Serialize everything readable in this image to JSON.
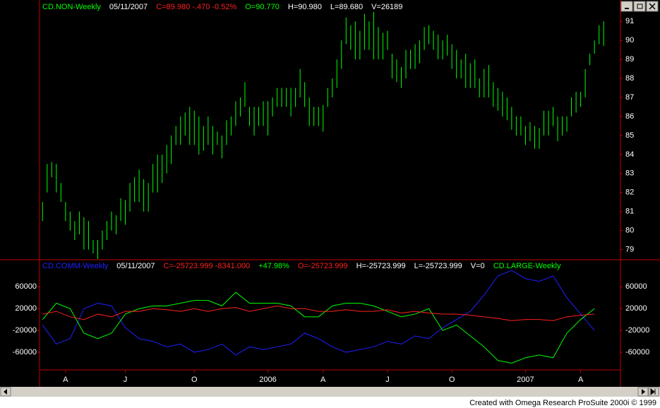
{
  "chart_data": [
    {
      "type": "ohlc",
      "header": [
        {
          "text": "CD.NON-Weekly",
          "color": "#00ff00"
        },
        {
          "text": "05/11/2007",
          "color": "#ffffff"
        },
        {
          "text": "C=89.980  -.470  -0.52%",
          "color": "#ff2020"
        },
        {
          "text": "O=90.770",
          "color": "#00ff00"
        },
        {
          "text": "H=90.980",
          "color": "#ffffff"
        },
        {
          "text": "L=89.680",
          "color": "#ffffff"
        },
        {
          "text": "V=26189",
          "color": "#ffffff"
        }
      ],
      "color": "#00ff00",
      "xlim": [
        -0.5,
        125.5
      ],
      "ylim": [
        78.5,
        92.05
      ],
      "yticks": [
        79,
        80,
        81,
        82,
        83,
        84,
        85,
        86,
        87,
        88,
        89,
        90,
        91
      ],
      "high": [
        81.5,
        83.5,
        83.6,
        83.5,
        82.5,
        81.5,
        81,
        80.5,
        81,
        80.7,
        80.5,
        79.5,
        79.5,
        80,
        80.5,
        81,
        80.8,
        81.7,
        81.6,
        82.5,
        82.8,
        83.2,
        82.7,
        82.5,
        83.5,
        84,
        84,
        84.5,
        85,
        85.5,
        86,
        86.2,
        86.5,
        86.3,
        86,
        85.5,
        86,
        85.5,
        85.2,
        85,
        85.8,
        86,
        86.8,
        87,
        87.8,
        86.5,
        86.5,
        86.5,
        86.8,
        86.8,
        87,
        87.5,
        87.5,
        87.5,
        87.5,
        87.5,
        88.5,
        87.8,
        87,
        86.5,
        86.5,
        86.6,
        87.5,
        88,
        89,
        90,
        91.2,
        90.8,
        91,
        90.5,
        91.4,
        91,
        91.5,
        90.7,
        90.4,
        90.5,
        89.3,
        89,
        88.6,
        89.5,
        89.5,
        89.8,
        90,
        90.7,
        90.8,
        90.5,
        90.3,
        90,
        90.3,
        89.8,
        89.5,
        89,
        89.3,
        88.8,
        89,
        88,
        88.5,
        88.7,
        87.8,
        87.5,
        87.3,
        87,
        86.5,
        86,
        86,
        85.5,
        85.7,
        85.5,
        85.4,
        86.3,
        86.3,
        86.5,
        86,
        86,
        86,
        87,
        87.3,
        87.3,
        88.5,
        89.3,
        90,
        90.8,
        91
      ],
      "low": [
        80.5,
        82,
        82.8,
        82,
        81.5,
        80.5,
        80,
        79.5,
        79.8,
        79,
        79,
        78.8,
        78.5,
        79,
        79.5,
        80,
        79.8,
        80.5,
        80.3,
        81,
        81.5,
        81.5,
        81,
        81,
        82,
        82,
        82.5,
        83,
        83.5,
        84.5,
        84.5,
        85,
        84.5,
        84.5,
        84,
        84.2,
        84.5,
        84,
        84.5,
        83.8,
        84.5,
        85,
        85.5,
        86,
        86.5,
        85.5,
        85,
        85.5,
        85.5,
        85,
        86,
        86.5,
        86.5,
        86.5,
        86,
        86.5,
        87,
        86.5,
        85.5,
        85.5,
        85.5,
        85.2,
        86.5,
        87,
        87.5,
        88.5,
        89.8,
        89.5,
        89,
        89,
        89.5,
        89.5,
        89,
        89,
        89,
        89.5,
        88,
        87.8,
        87.5,
        88,
        88.5,
        88.5,
        88.8,
        89.5,
        89.8,
        89.5,
        89,
        89,
        89.2,
        88.5,
        88,
        88,
        87.5,
        87.5,
        87.5,
        87,
        87,
        87,
        86.5,
        86.3,
        86,
        85.8,
        85.3,
        85,
        85,
        84.5,
        84.7,
        84.3,
        84.3,
        85,
        85,
        85.5,
        84.7,
        85,
        85.2,
        86,
        86.2,
        86.5,
        87,
        88.7,
        89.3,
        89.8,
        89.7
      ]
    },
    {
      "type": "line",
      "header": [
        {
          "text": "CD.COMM-Weekly",
          "color": "#2020ff"
        },
        {
          "text": "05/11/2007",
          "color": "#ffffff"
        },
        {
          "text": "C=-25723.999  -8341.000",
          "color": "#ff2020"
        },
        {
          "text": "+47.98%",
          "color": "#00ff00"
        },
        {
          "text": "O=-25723.999",
          "color": "#ff2020"
        },
        {
          "text": "H=-25723.999",
          "color": "#ffffff"
        },
        {
          "text": "L=-25723.999",
          "color": "#ffffff"
        },
        {
          "text": "V=0",
          "color": "#ffffff"
        },
        {
          "text": "CD.LARGE-Weekly",
          "color": "#00ff00"
        }
      ],
      "xlim": [
        -0.5,
        125.5
      ],
      "ylim": [
        -91000,
        107000
      ],
      "yticks": [
        60000,
        20000,
        -20000,
        -60000
      ],
      "xticks": [
        {
          "value": 5,
          "label": "A"
        },
        {
          "value": 18,
          "label": "J"
        },
        {
          "value": 33,
          "label": "O"
        },
        {
          "value": 49,
          "label": "2006"
        },
        {
          "value": 61,
          "label": "A"
        },
        {
          "value": 75,
          "label": "J"
        },
        {
          "value": 89,
          "label": "O"
        },
        {
          "value": 105,
          "label": "2007"
        },
        {
          "value": 117,
          "label": "A"
        }
      ],
      "x": [
        0,
        3,
        6,
        9,
        12,
        15,
        18,
        21,
        24,
        27,
        30,
        33,
        36,
        39,
        42,
        45,
        48,
        51,
        54,
        57,
        60,
        63,
        66,
        69,
        72,
        75,
        78,
        81,
        84,
        87,
        90,
        93,
        96,
        99,
        102,
        105,
        108,
        111,
        114,
        117,
        120
      ],
      "series": [
        {
          "color": "#2020ff",
          "values": [
            -10000,
            -45000,
            -35000,
            20000,
            30000,
            25000,
            -15000,
            -35000,
            -40000,
            -50000,
            -45000,
            -60000,
            -55000,
            -45000,
            -65000,
            -50000,
            -55000,
            -50000,
            -45000,
            -25000,
            -35000,
            -50000,
            -60000,
            -55000,
            -50000,
            -40000,
            -45000,
            -30000,
            -35000,
            -15000,
            0,
            15000,
            45000,
            80000,
            90000,
            75000,
            70000,
            80000,
            40000,
            10000,
            -20000
          ]
        },
        {
          "color": "#00ff00",
          "values": [
            0,
            30000,
            20000,
            -25000,
            -35000,
            -25000,
            10000,
            20000,
            25000,
            25000,
            30000,
            35000,
            35000,
            25000,
            50000,
            30000,
            30000,
            30000,
            25000,
            5000,
            5000,
            25000,
            30000,
            30000,
            25000,
            15000,
            5000,
            10000,
            20000,
            -20000,
            -10000,
            -30000,
            -50000,
            -75000,
            -80000,
            -70000,
            -65000,
            -70000,
            -25000,
            0,
            20000
          ]
        },
        {
          "color": "#ff2020",
          "values": [
            10000,
            15000,
            5000,
            0,
            10000,
            5000,
            15000,
            15000,
            20000,
            18000,
            15000,
            20000,
            15000,
            20000,
            22000,
            15000,
            20000,
            25000,
            20000,
            20000,
            15000,
            15000,
            18000,
            15000,
            15000,
            18000,
            12000,
            15000,
            12000,
            10000,
            10000,
            8000,
            5000,
            2000,
            -2000,
            0,
            0,
            -2000,
            5000,
            8000,
            10000
          ]
        }
      ]
    }
  ],
  "footer": "Created with Omega Research ProSuite 2000i © 1999"
}
